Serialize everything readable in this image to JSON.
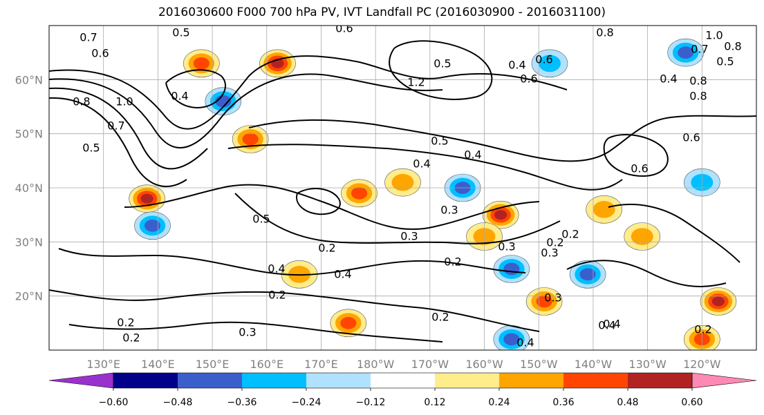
{
  "title": "2016030600 F000 700 hPa PV, IVT Landfall PC (2016030900 - 2016031100)",
  "chart_data": {
    "type": "heatmap",
    "projection": "map",
    "title": "2016030600 F000 700 hPa PV, IVT Landfall PC (2016030900 - 2016031100)",
    "lon_ticks": [
      {
        "lon": 130,
        "label": "130°E"
      },
      {
        "lon": 140,
        "label": "140°E"
      },
      {
        "lon": 150,
        "label": "150°E"
      },
      {
        "lon": 160,
        "label": "160°E"
      },
      {
        "lon": 170,
        "label": "170°E"
      },
      {
        "lon": 180,
        "label": "180°W"
      },
      {
        "lon": 190,
        "label": "170°W"
      },
      {
        "lon": 200,
        "label": "160°W"
      },
      {
        "lon": 210,
        "label": "150°W"
      },
      {
        "lon": 220,
        "label": "140°W"
      },
      {
        "lon": 230,
        "label": "130°W"
      },
      {
        "lon": 240,
        "label": "120°W"
      }
    ],
    "lat_ticks": [
      {
        "lat": 20,
        "label": "20°N"
      },
      {
        "lat": 30,
        "label": "30°N"
      },
      {
        "lat": 40,
        "label": "40°N"
      },
      {
        "lat": 50,
        "label": "50°N"
      },
      {
        "lat": 60,
        "label": "60°N"
      }
    ],
    "lon_range": [
      120,
      250
    ],
    "lat_range": [
      10,
      70
    ],
    "grid": true,
    "colorbar": {
      "position": "bottom",
      "extend": "both",
      "levels": [
        -0.6,
        -0.48,
        -0.36,
        -0.24,
        -0.12,
        0.12,
        0.24,
        0.36,
        0.48,
        0.6
      ],
      "tick_labels": [
        "−0.60",
        "−0.48",
        "−0.36",
        "−0.24",
        "−0.12",
        "0.12",
        "0.24",
        "0.36",
        "0.48",
        "0.60"
      ],
      "colors": [
        "#9932cc",
        "#00008b",
        "#3a5fcd",
        "#00bfff",
        "#b0e2ff",
        "#ffffff",
        "#ffec8b",
        "#ffa500",
        "#ff4500",
        "#b22222",
        "#ff89b5"
      ]
    },
    "shaded_anomalies": [
      {
        "lon": 148,
        "lat": 63,
        "value": 0.42
      },
      {
        "lon": 162,
        "lat": 63,
        "value": 0.5
      },
      {
        "lon": 152,
        "lat": 56,
        "value": -0.42
      },
      {
        "lon": 157,
        "lat": 49,
        "value": 0.4
      },
      {
        "lon": 138,
        "lat": 38,
        "value": 0.55
      },
      {
        "lon": 139,
        "lat": 33,
        "value": -0.4
      },
      {
        "lon": 177,
        "lat": 39,
        "value": 0.36
      },
      {
        "lon": 185,
        "lat": 41,
        "value": 0.32
      },
      {
        "lon": 196,
        "lat": 40,
        "value": -0.36
      },
      {
        "lon": 203,
        "lat": 35,
        "value": 0.5
      },
      {
        "lon": 200,
        "lat": 31,
        "value": 0.3
      },
      {
        "lon": 205,
        "lat": 25,
        "value": -0.4
      },
      {
        "lon": 211,
        "lat": 19,
        "value": 0.45
      },
      {
        "lon": 219,
        "lat": 24,
        "value": -0.45
      },
      {
        "lon": 175,
        "lat": 15,
        "value": 0.4
      },
      {
        "lon": 166,
        "lat": 24,
        "value": 0.3
      },
      {
        "lon": 243,
        "lat": 19,
        "value": 0.55
      },
      {
        "lon": 240,
        "lat": 12,
        "value": 0.4
      },
      {
        "lon": 237,
        "lat": 65,
        "value": -0.42
      },
      {
        "lon": 212,
        "lat": 63,
        "value": -0.32
      },
      {
        "lon": 205,
        "lat": 12,
        "value": -0.42
      },
      {
        "lon": 240,
        "lat": 41,
        "value": -0.35
      },
      {
        "lon": 229,
        "lat": 31,
        "value": 0.35
      },
      {
        "lon": 222,
        "lat": 36,
        "value": 0.3
      }
    ],
    "contour_labels": [
      "0.7",
      "0.6",
      "0.5",
      "0.6",
      "0.8",
      "1.2",
      "0.5",
      "0.4",
      "0.8",
      "1.0",
      "0.8",
      "0.5",
      "0.7",
      "1.0",
      "0.5",
      "0.4",
      "0.6",
      "0.5",
      "0.4",
      "0.4",
      "0.3",
      "0.5",
      "0.3",
      "0.2",
      "0.2",
      "0.4",
      "0.4",
      "0.3",
      "0.2",
      "0.2",
      "0.3",
      "0.4",
      "0.2",
      "0.4",
      "0.2",
      "0.3",
      "0.3",
      "0.2",
      "0.4",
      "0.8",
      "0.6",
      "0.4",
      "0.7",
      "0.8",
      "0.6",
      "0.2",
      "0.2",
      "0.6"
    ]
  }
}
